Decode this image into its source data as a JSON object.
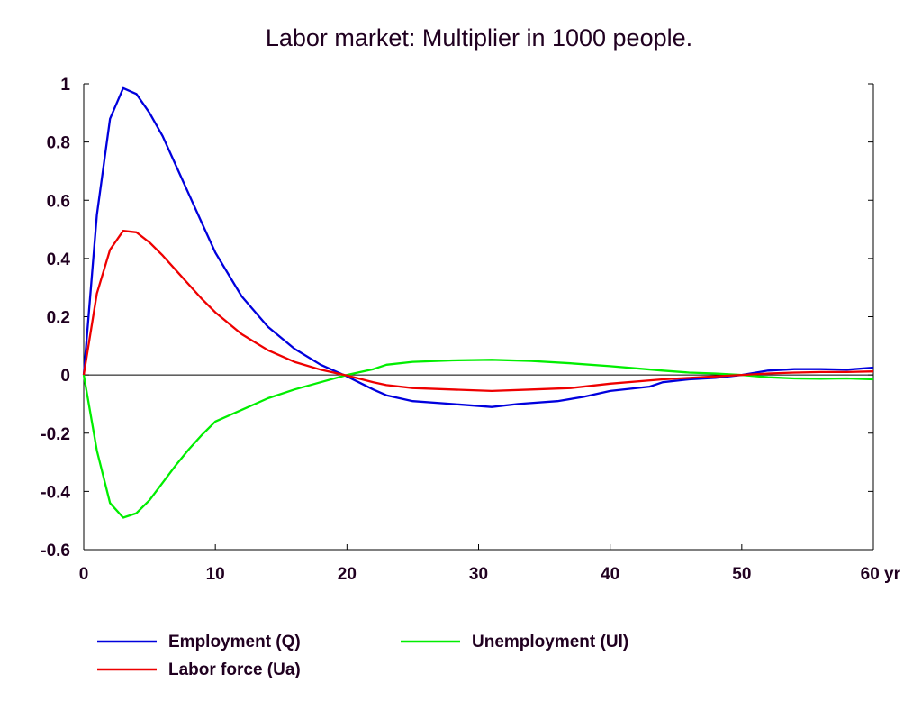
{
  "chart_data": {
    "type": "line",
    "title": "Labor market: Multiplier in 1000 people.",
    "xlabel": "",
    "ylabel": "",
    "xlim": [
      0,
      60
    ],
    "ylim": [
      -0.6,
      1
    ],
    "x_ticks": [
      {
        "value": 0,
        "label": "0"
      },
      {
        "value": 10,
        "label": "10"
      },
      {
        "value": 20,
        "label": "20"
      },
      {
        "value": 30,
        "label": "30"
      },
      {
        "value": 40,
        "label": "40"
      },
      {
        "value": 50,
        "label": "50"
      },
      {
        "value": 60,
        "label": "60 yr"
      }
    ],
    "y_ticks": [
      {
        "value": 1,
        "label": "1"
      },
      {
        "value": 0.8,
        "label": "0.8"
      },
      {
        "value": 0.6,
        "label": "0.6"
      },
      {
        "value": 0.4,
        "label": "0.4"
      },
      {
        "value": 0.2,
        "label": "0.2"
      },
      {
        "value": 0,
        "label": "0"
      },
      {
        "value": -0.2,
        "label": "-0.2"
      },
      {
        "value": -0.4,
        "label": "-0.4"
      },
      {
        "value": -0.6,
        "label": "-0.6"
      }
    ],
    "zero_line": true,
    "grid": false,
    "legend_position": "bottom",
    "series": [
      {
        "name": "Employment (Q)",
        "color": "#0000dd",
        "x": [
          0,
          1,
          2,
          3,
          4,
          5,
          6,
          7,
          8,
          9,
          10,
          12,
          14,
          16,
          18,
          20,
          22,
          23,
          25,
          28,
          31,
          33,
          36,
          38,
          40,
          43,
          44,
          46,
          48,
          50,
          52,
          54,
          56,
          58,
          60
        ],
        "y": [
          0,
          0.55,
          0.88,
          0.985,
          0.965,
          0.9,
          0.82,
          0.72,
          0.62,
          0.52,
          0.42,
          0.27,
          0.165,
          0.09,
          0.035,
          -0.005,
          -0.05,
          -0.07,
          -0.09,
          -0.1,
          -0.11,
          -0.1,
          -0.09,
          -0.075,
          -0.055,
          -0.04,
          -0.025,
          -0.015,
          -0.01,
          0.0,
          0.015,
          0.02,
          0.02,
          0.018,
          0.025
        ]
      },
      {
        "name": "Unemployment (Ul)",
        "color": "#00ee00",
        "x": [
          0,
          1,
          2,
          3,
          4,
          5,
          6,
          7,
          8,
          9,
          10,
          12,
          14,
          16,
          18,
          20,
          22,
          23,
          25,
          28,
          31,
          34,
          37,
          40,
          44,
          46,
          48,
          50,
          52,
          54,
          56,
          58,
          60
        ],
        "y": [
          0,
          -0.26,
          -0.44,
          -0.49,
          -0.475,
          -0.43,
          -0.37,
          -0.31,
          -0.255,
          -0.205,
          -0.16,
          -0.12,
          -0.08,
          -0.05,
          -0.025,
          0.0,
          0.02,
          0.035,
          0.045,
          0.05,
          0.052,
          0.048,
          0.04,
          0.03,
          0.015,
          0.008,
          0.005,
          0.0,
          -0.008,
          -0.012,
          -0.013,
          -0.012,
          -0.015
        ]
      },
      {
        "name": "Labor force (Ua)",
        "color": "#ee0000",
        "x": [
          0,
          1,
          2,
          3,
          4,
          5,
          6,
          7,
          8,
          9,
          10,
          12,
          14,
          16,
          18,
          20,
          22,
          23,
          25,
          28,
          31,
          34,
          37,
          40,
          44,
          46,
          48,
          50,
          52,
          54,
          56,
          58,
          60
        ],
        "y": [
          0,
          0.28,
          0.43,
          0.495,
          0.49,
          0.455,
          0.41,
          0.36,
          0.31,
          0.26,
          0.215,
          0.14,
          0.085,
          0.045,
          0.018,
          -0.002,
          -0.025,
          -0.035,
          -0.045,
          -0.05,
          -0.055,
          -0.05,
          -0.045,
          -0.03,
          -0.015,
          -0.01,
          -0.005,
          0.0,
          0.005,
          0.008,
          0.01,
          0.01,
          0.012
        ]
      }
    ]
  }
}
